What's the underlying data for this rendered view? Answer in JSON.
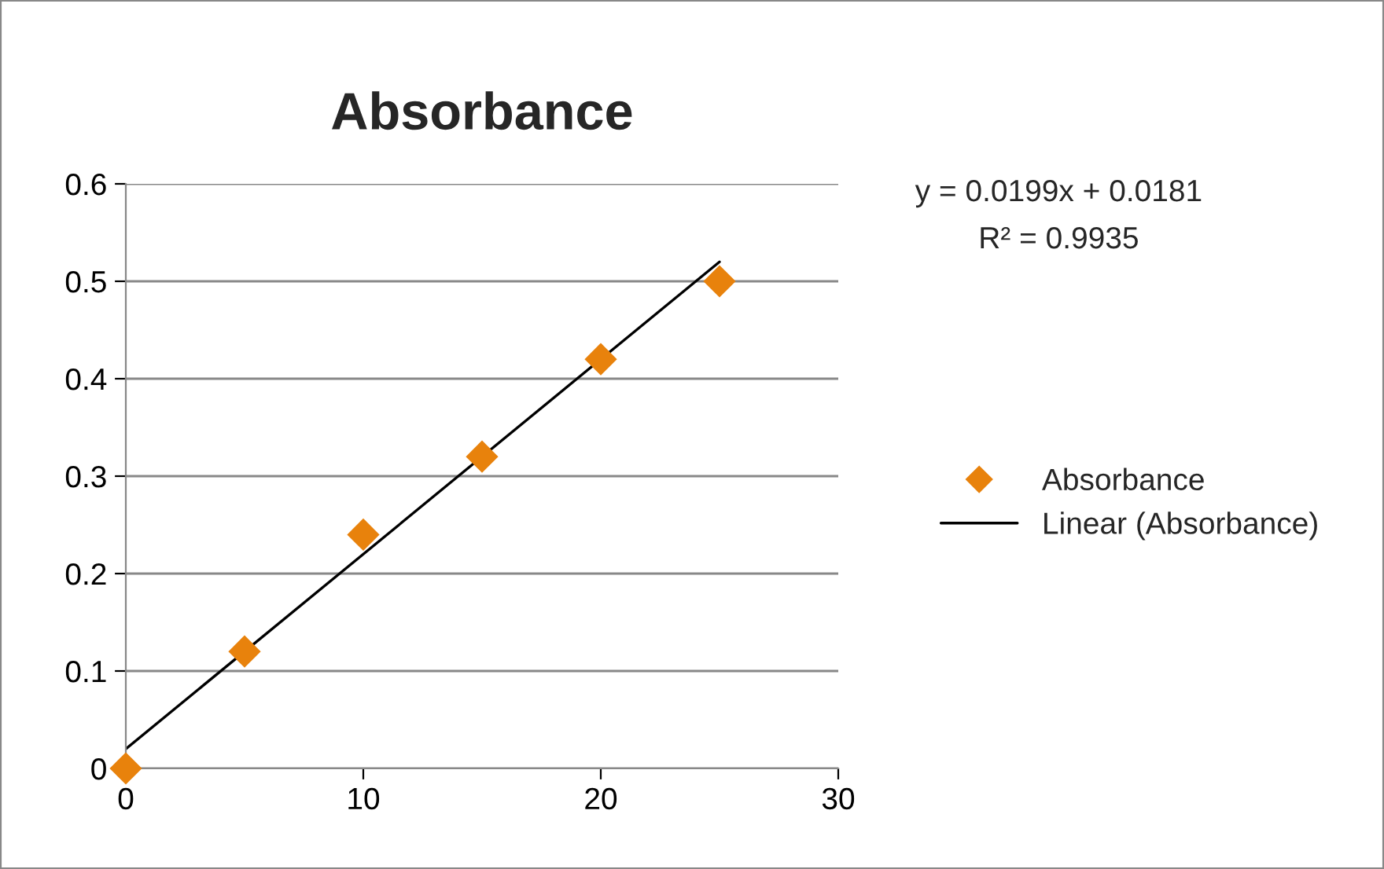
{
  "chart_data": {
    "type": "scatter",
    "title": "Absorbance",
    "x": [
      0,
      5,
      10,
      15,
      20,
      25
    ],
    "series": [
      {
        "name": "Absorbance",
        "color": "#e8820c",
        "marker": "diamond",
        "values": [
          0,
          0.12,
          0.24,
          0.32,
          0.42,
          0.5
        ]
      },
      {
        "name": "Linear (Absorbance)",
        "type": "line",
        "color": "#000000",
        "marker": "none",
        "line_style": "solid",
        "x": [
          0,
          25
        ],
        "values": [
          0.02,
          0.52
        ]
      }
    ],
    "annotations": [
      "y = 0.0199x + 0.0181",
      "R² = 0.9935"
    ],
    "xlim": [
      0,
      30
    ],
    "xticks": [
      0,
      10,
      20,
      30
    ],
    "ylim": [
      0,
      0.6
    ],
    "yticks": [
      0,
      0.1,
      0.2,
      0.3,
      0.4,
      0.5,
      0.6
    ],
    "grid": "y",
    "legend": "right"
  }
}
